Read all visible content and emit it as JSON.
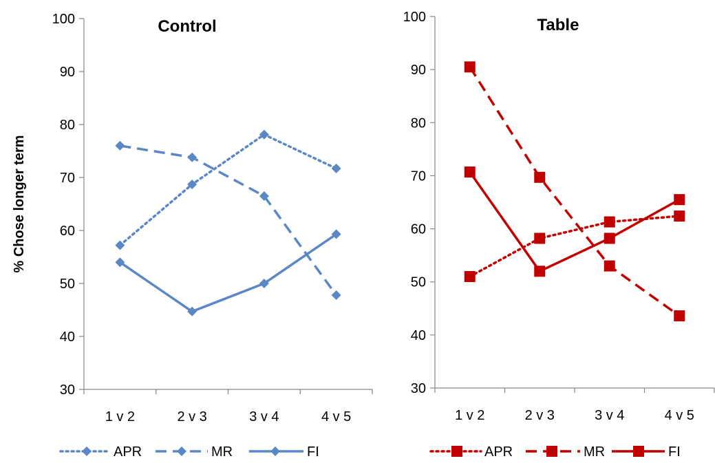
{
  "chart_data": [
    {
      "type": "line",
      "title": "Control",
      "ylabel": "% Chose longer term",
      "xlabel": "",
      "categories": [
        "1 v 2",
        "2 v 3",
        "3 v 4",
        "4 v 5"
      ],
      "ylim": [
        30,
        100
      ],
      "yticks": [
        "30",
        "40",
        "50",
        "60",
        "70",
        "80",
        "90",
        "100"
      ],
      "color": "#5b87c4",
      "marker": "diamond",
      "legend_position": "bottom",
      "series": [
        {
          "name": "APR",
          "dash": "dotted",
          "values": [
            57.2,
            68.7,
            78.1,
            71.7
          ]
        },
        {
          "name": "MR",
          "dash": "dashed",
          "values": [
            76.0,
            73.8,
            66.5,
            47.8
          ]
        },
        {
          "name": "FI",
          "dash": "solid",
          "values": [
            54.0,
            44.7,
            50.0,
            59.3
          ]
        }
      ]
    },
    {
      "type": "line",
      "title": "Table",
      "ylabel": "",
      "xlabel": "",
      "categories": [
        "1 v 2",
        "2 v 3",
        "3 v 4",
        "4 v 5"
      ],
      "ylim": [
        30,
        100
      ],
      "yticks": [
        "30",
        "40",
        "50",
        "60",
        "70",
        "80",
        "90",
        "100"
      ],
      "color": "#c00000",
      "marker": "square",
      "legend_position": "bottom",
      "series": [
        {
          "name": "APR",
          "dash": "dotted",
          "values": [
            51.0,
            58.2,
            61.3,
            62.4
          ]
        },
        {
          "name": "MR",
          "dash": "dashed",
          "values": [
            90.5,
            69.7,
            53.0,
            43.6
          ]
        },
        {
          "name": "FI",
          "dash": "solid",
          "values": [
            70.7,
            52.0,
            58.2,
            65.5
          ]
        }
      ]
    }
  ]
}
